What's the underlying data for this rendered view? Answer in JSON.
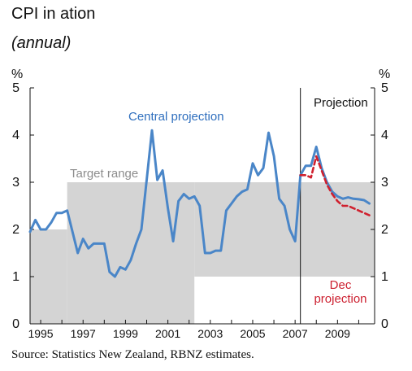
{
  "header": {
    "title": "CPI in  ation",
    "subtitle": "(annual)"
  },
  "footer": {
    "source": "Source: Statistics New Zealand, RBNZ estimates."
  },
  "annotations": {
    "central_projection": "Central projection",
    "target_range": "Target range",
    "projection": "Projection",
    "dec_projection_line1": "Dec",
    "dec_projection_line2": "projection"
  },
  "colors": {
    "central": "#4a86c8",
    "dec": "#d0202e",
    "target_band": "#d4d4d4",
    "axis": "#111111"
  },
  "chart_data": {
    "type": "line",
    "title": "CPI in  ation",
    "subtitle": "(annual)",
    "ylabel_left": "%",
    "ylabel_right": "%",
    "ylim": [
      0,
      5
    ],
    "xlim": [
      1994.5,
      2010.75
    ],
    "y_ticks": [
      "0",
      "1",
      "2",
      "3",
      "4",
      "5"
    ],
    "x_tick_labels": [
      "1995",
      "1997",
      "1999",
      "2001",
      "2003",
      "2005",
      "2007",
      "2009"
    ],
    "x_tick_values": [
      1995,
      1997,
      1999,
      2001,
      2003,
      2005,
      2007,
      2009
    ],
    "projection_start": 2007.25,
    "target_band": [
      {
        "x_start": 1994.5,
        "x_end": 1996.25,
        "low": 0,
        "high": 2
      },
      {
        "x_start": 1996.25,
        "x_end": 2002.25,
        "low": 0,
        "high": 3
      },
      {
        "x_start": 2002.25,
        "x_end": 2010.75,
        "low": 1,
        "high": 3
      }
    ],
    "series": [
      {
        "name": "Central projection",
        "style": "solid",
        "x": [
          1994.5,
          1994.75,
          1995.0,
          1995.25,
          1995.5,
          1995.75,
          1996.0,
          1996.25,
          1996.5,
          1996.75,
          1997.0,
          1997.25,
          1997.5,
          1997.75,
          1998.0,
          1998.25,
          1998.5,
          1998.75,
          1999.0,
          1999.25,
          1999.5,
          1999.75,
          2000.0,
          2000.25,
          2000.5,
          2000.75,
          2001.0,
          2001.25,
          2001.5,
          2001.75,
          2002.0,
          2002.25,
          2002.5,
          2002.75,
          2003.0,
          2003.25,
          2003.5,
          2003.75,
          2004.0,
          2004.25,
          2004.5,
          2004.75,
          2005.0,
          2005.25,
          2005.5,
          2005.75,
          2006.0,
          2006.25,
          2006.5,
          2006.75,
          2007.0,
          2007.25,
          2007.5,
          2007.75,
          2008.0,
          2008.25,
          2008.5,
          2008.75,
          2009.0,
          2009.25,
          2009.5,
          2009.75,
          2010.0,
          2010.25,
          2010.5
        ],
        "values": [
          1.95,
          2.2,
          2.0,
          2.0,
          2.15,
          2.35,
          2.35,
          2.4,
          1.95,
          1.5,
          1.8,
          1.6,
          1.7,
          1.7,
          1.7,
          1.1,
          1.0,
          1.2,
          1.15,
          1.35,
          1.7,
          2.0,
          3.05,
          4.1,
          3.05,
          3.25,
          2.45,
          1.75,
          2.6,
          2.75,
          2.65,
          2.7,
          2.5,
          1.5,
          1.5,
          1.55,
          1.55,
          2.4,
          2.55,
          2.7,
          2.8,
          2.85,
          3.4,
          3.15,
          3.3,
          4.05,
          3.55,
          2.65,
          2.5,
          2.0,
          1.75,
          3.15,
          3.35,
          3.35,
          3.75,
          3.3,
          3.0,
          2.8,
          2.7,
          2.65,
          2.68,
          2.65,
          2.64,
          2.62,
          2.55
        ]
      },
      {
        "name": "Dec projection",
        "style": "dashed",
        "x": [
          2007.25,
          2007.5,
          2007.75,
          2008.0,
          2008.25,
          2008.5,
          2008.75,
          2009.0,
          2009.25,
          2009.5,
          2009.75,
          2010.0,
          2010.25,
          2010.5
        ],
        "values": [
          3.15,
          3.15,
          3.1,
          3.55,
          3.25,
          2.95,
          2.75,
          2.6,
          2.5,
          2.5,
          2.45,
          2.4,
          2.35,
          2.3
        ]
      }
    ]
  }
}
